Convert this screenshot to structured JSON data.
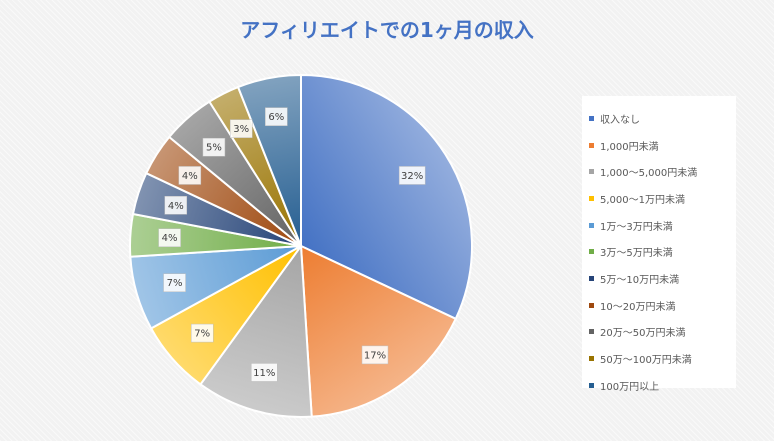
{
  "chart_data": {
    "type": "pie",
    "title": "アフィリエイトでの1ヶ月の収入",
    "categories": [
      "収入なし",
      "1,000円未満",
      "1,000〜5,000円未満",
      "5,000〜1万円未満",
      "1万〜3万円未満",
      "3万〜5万円未満",
      "5万〜10万円未満",
      "10〜20万円未満",
      "20万〜50万円未満",
      "50万〜100万円未満",
      "100万円以上"
    ],
    "values": [
      32,
      17,
      11,
      7,
      7,
      4,
      4,
      4,
      5,
      3,
      6
    ],
    "value_labels": [
      "32%",
      "17%",
      "11%",
      "7%",
      "7%",
      "4%",
      "4%",
      "4%",
      "5%",
      "3%",
      "6%"
    ],
    "colors": [
      "#4472c4",
      "#ed7d31",
      "#a5a5a5",
      "#ffc000",
      "#5b9bd5",
      "#70ad47",
      "#264478",
      "#9e480e",
      "#636363",
      "#997300",
      "#255e91"
    ],
    "legend_position": "right",
    "start_angle_deg": 0,
    "direction": "clockwise"
  }
}
